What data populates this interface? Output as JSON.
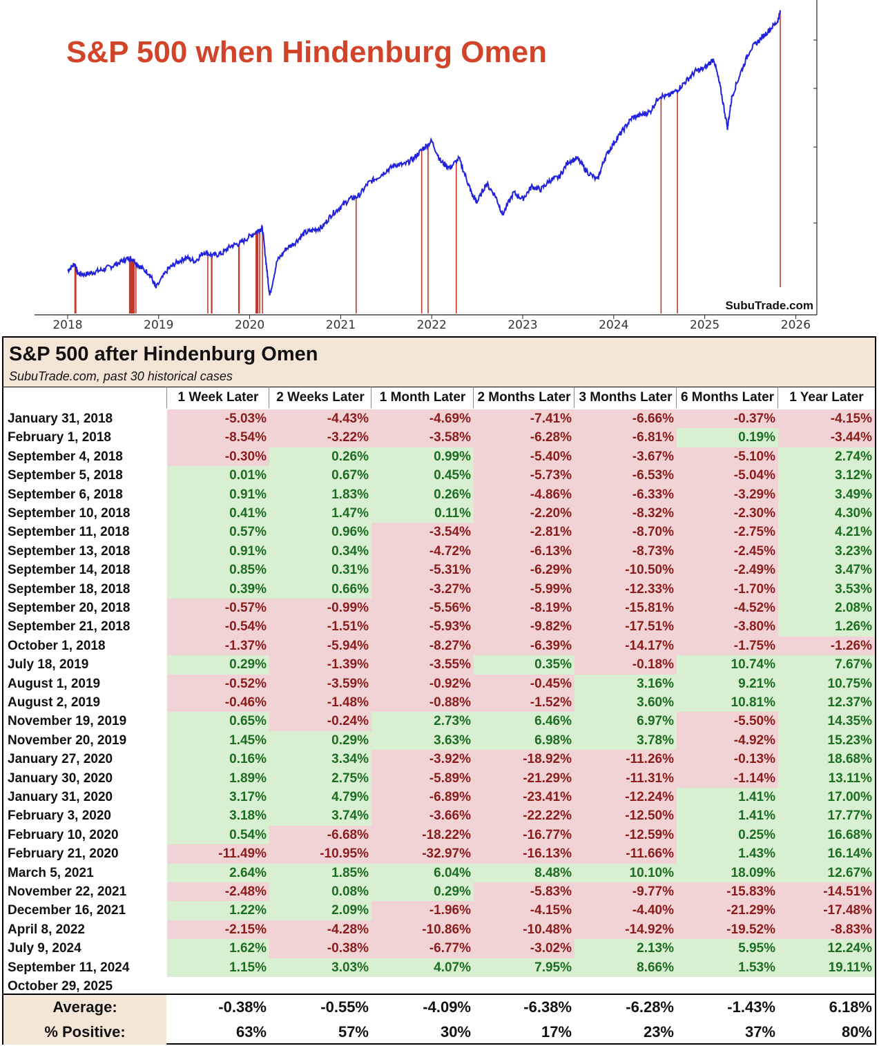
{
  "chart_data": [
    {
      "type": "line",
      "title": "S&P 500 when Hindenburg Omen",
      "title_color": "#d2442a",
      "line_color": "#2222dd",
      "marker_color": "#c0392b",
      "watermark": "SubuTrade.com",
      "xlabel": "",
      "ylabel": "",
      "x_ticks": [
        "2018",
        "2019",
        "2020",
        "2021",
        "2022",
        "2023",
        "2024",
        "2025",
        "2026"
      ],
      "xlim": [
        2018.0,
        2026.0
      ],
      "ylim": [
        2100,
        7000
      ],
      "grid": false,
      "series": [
        {
          "x": [
            2018.0,
            2018.08,
            2018.11,
            2018.2,
            2018.3,
            2018.4,
            2018.5,
            2018.6,
            2018.67,
            2018.72,
            2018.8,
            2018.9,
            2018.97,
            2019.1,
            2019.2,
            2019.3,
            2019.4,
            2019.5,
            2019.6,
            2019.7,
            2019.8,
            2019.9,
            2020.0,
            2020.1,
            2020.14,
            2020.19,
            2020.22,
            2020.3,
            2020.4,
            2020.5,
            2020.6,
            2020.7,
            2020.8,
            2020.9,
            2021.0,
            2021.1,
            2021.2,
            2021.3,
            2021.4,
            2021.5,
            2021.6,
            2021.7,
            2021.8,
            2021.9,
            2022.0,
            2022.1,
            2022.2,
            2022.3,
            2022.4,
            2022.45,
            2022.5,
            2022.6,
            2022.7,
            2022.78,
            2022.9,
            2023.0,
            2023.1,
            2023.2,
            2023.3,
            2023.4,
            2023.5,
            2023.6,
            2023.7,
            2023.82,
            2023.9,
            2024.0,
            2024.1,
            2024.2,
            2024.3,
            2024.4,
            2024.5,
            2024.6,
            2024.7,
            2024.8,
            2024.9,
            2025.0,
            2025.1,
            2025.17,
            2025.25,
            2025.3,
            2025.4,
            2025.5,
            2025.6,
            2025.7,
            2025.8,
            2025.83
          ],
          "y": [
            2700,
            2810,
            2650,
            2640,
            2680,
            2720,
            2780,
            2850,
            2900,
            2880,
            2750,
            2650,
            2420,
            2720,
            2830,
            2910,
            2850,
            3000,
            2940,
            2980,
            3100,
            3140,
            3250,
            3350,
            3380,
            2700,
            2300,
            2850,
            3050,
            3150,
            3300,
            3350,
            3400,
            3600,
            3720,
            3850,
            3900,
            4100,
            4190,
            4300,
            4400,
            4400,
            4500,
            4650,
            4780,
            4450,
            4350,
            4500,
            4100,
            3900,
            3800,
            4100,
            3900,
            3600,
            3950,
            3850,
            4050,
            4000,
            4150,
            4200,
            4450,
            4500,
            4300,
            4150,
            4500,
            4750,
            4950,
            5150,
            5200,
            5250,
            5500,
            5500,
            5600,
            5750,
            5900,
            5950,
            6100,
            5650,
            5000,
            5500,
            5900,
            6250,
            6400,
            6550,
            6700,
            6850
          ]
        }
      ],
      "signal_years": [
        2018.08,
        2018.09,
        2018.68,
        2018.685,
        2018.69,
        2018.7,
        2018.71,
        2018.715,
        2018.72,
        2018.73,
        2018.75,
        2019.54,
        2019.58,
        2019.585,
        2019.88,
        2019.885,
        2020.07,
        2020.08,
        2020.083,
        2020.09,
        2020.11,
        2020.14,
        2021.17,
        2021.89,
        2021.96,
        2022.27,
        2024.52,
        2024.7,
        2025.83
      ]
    },
    {
      "type": "table",
      "title": "S&P 500 after Hindenburg Omen",
      "subtitle": "SubuTrade.com, past 30 historical cases",
      "columns": [
        "1 Week Later",
        "2 Weeks Later",
        "1 Month Later",
        "2 Months Later",
        "3 Months Later",
        "6 Months Later",
        "1 Year Later"
      ],
      "rows": [
        {
          "date": "January 31, 2018",
          "values": [
            "-5.03%",
            "-4.43%",
            "-4.69%",
            "-7.41%",
            "-6.66%",
            "-0.37%",
            "-4.15%"
          ]
        },
        {
          "date": "February 1, 2018",
          "values": [
            "-8.54%",
            "-3.22%",
            "-3.58%",
            "-6.28%",
            "-6.81%",
            "0.19%",
            "-3.44%"
          ]
        },
        {
          "date": "September 4, 2018",
          "values": [
            "-0.30%",
            "0.26%",
            "0.99%",
            "-5.40%",
            "-3.67%",
            "-5.10%",
            "2.74%"
          ]
        },
        {
          "date": "September 5, 2018",
          "values": [
            "0.01%",
            "0.67%",
            "0.45%",
            "-5.73%",
            "-6.53%",
            "-5.04%",
            "3.12%"
          ]
        },
        {
          "date": "September 6, 2018",
          "values": [
            "0.91%",
            "1.83%",
            "0.26%",
            "-4.86%",
            "-6.33%",
            "-3.29%",
            "3.49%"
          ]
        },
        {
          "date": "September 10, 2018",
          "values": [
            "0.41%",
            "1.47%",
            "0.11%",
            "-2.20%",
            "-8.32%",
            "-2.30%",
            "4.30%"
          ]
        },
        {
          "date": "September 11, 2018",
          "values": [
            "0.57%",
            "0.96%",
            "-3.54%",
            "-2.81%",
            "-8.70%",
            "-2.75%",
            "4.21%"
          ]
        },
        {
          "date": "September 13, 2018",
          "values": [
            "0.91%",
            "0.34%",
            "-4.72%",
            "-6.13%",
            "-8.73%",
            "-2.45%",
            "3.23%"
          ]
        },
        {
          "date": "September 14, 2018",
          "values": [
            "0.85%",
            "0.31%",
            "-5.31%",
            "-6.29%",
            "-10.50%",
            "-2.49%",
            "3.47%"
          ]
        },
        {
          "date": "September 18, 2018",
          "values": [
            "0.39%",
            "0.66%",
            "-3.27%",
            "-5.99%",
            "-12.33%",
            "-1.70%",
            "3.53%"
          ]
        },
        {
          "date": "September 20, 2018",
          "values": [
            "-0.57%",
            "-0.99%",
            "-5.56%",
            "-8.19%",
            "-15.81%",
            "-4.52%",
            "2.08%"
          ]
        },
        {
          "date": "September 21, 2018",
          "values": [
            "-0.54%",
            "-1.51%",
            "-5.93%",
            "-9.82%",
            "-17.51%",
            "-3.80%",
            "1.26%"
          ]
        },
        {
          "date": "October 1, 2018",
          "values": [
            "-1.37%",
            "-5.94%",
            "-8.27%",
            "-6.39%",
            "-14.17%",
            "-1.75%",
            "-1.26%"
          ]
        },
        {
          "date": "July 18, 2019",
          "values": [
            "0.29%",
            "-1.39%",
            "-3.55%",
            "0.35%",
            "-0.18%",
            "10.74%",
            "7.67%"
          ]
        },
        {
          "date": "August 1, 2019",
          "values": [
            "-0.52%",
            "-3.59%",
            "-0.92%",
            "-0.45%",
            "3.16%",
            "9.21%",
            "10.75%"
          ]
        },
        {
          "date": "August 2, 2019",
          "values": [
            "-0.46%",
            "-1.48%",
            "-0.88%",
            "-1.52%",
            "3.60%",
            "10.81%",
            "12.37%"
          ]
        },
        {
          "date": "November 19, 2019",
          "values": [
            "0.65%",
            "-0.24%",
            "2.73%",
            "6.46%",
            "6.97%",
            "-5.50%",
            "14.35%"
          ]
        },
        {
          "date": "November 20, 2019",
          "values": [
            "1.45%",
            "0.29%",
            "3.63%",
            "6.98%",
            "3.78%",
            "-4.92%",
            "15.23%"
          ]
        },
        {
          "date": "January 27, 2020",
          "values": [
            "0.16%",
            "3.34%",
            "-3.92%",
            "-18.92%",
            "-11.26%",
            "-0.13%",
            "18.68%"
          ]
        },
        {
          "date": "January 30, 2020",
          "values": [
            "1.89%",
            "2.75%",
            "-5.89%",
            "-21.29%",
            "-11.31%",
            "-1.14%",
            "13.11%"
          ]
        },
        {
          "date": "January 31, 2020",
          "values": [
            "3.17%",
            "4.79%",
            "-6.89%",
            "-23.41%",
            "-12.24%",
            "1.41%",
            "17.00%"
          ]
        },
        {
          "date": "February 3, 2020",
          "values": [
            "3.18%",
            "3.74%",
            "-3.66%",
            "-22.22%",
            "-12.50%",
            "1.41%",
            "17.77%"
          ]
        },
        {
          "date": "February 10, 2020",
          "values": [
            "0.54%",
            "-6.68%",
            "-18.22%",
            "-16.77%",
            "-12.59%",
            "0.25%",
            "16.68%"
          ]
        },
        {
          "date": "February 21, 2020",
          "values": [
            "-11.49%",
            "-10.95%",
            "-32.97%",
            "-16.13%",
            "-11.66%",
            "1.43%",
            "16.14%"
          ]
        },
        {
          "date": "March 5, 2021",
          "values": [
            "2.64%",
            "1.85%",
            "6.04%",
            "8.48%",
            "10.10%",
            "18.09%",
            "12.67%"
          ]
        },
        {
          "date": "November 22, 2021",
          "values": [
            "-2.48%",
            "0.08%",
            "0.29%",
            "-5.83%",
            "-9.77%",
            "-15.83%",
            "-14.51%"
          ]
        },
        {
          "date": "December 16, 2021",
          "values": [
            "1.22%",
            "2.09%",
            "-1.96%",
            "-4.15%",
            "-4.40%",
            "-21.29%",
            "-17.48%"
          ]
        },
        {
          "date": "April 8, 2022",
          "values": [
            "-2.15%",
            "-4.28%",
            "-10.86%",
            "-10.48%",
            "-14.92%",
            "-19.52%",
            "-8.83%"
          ]
        },
        {
          "date": "July 9, 2024",
          "values": [
            "1.62%",
            "-0.38%",
            "-6.77%",
            "-3.02%",
            "2.13%",
            "5.95%",
            "12.24%"
          ]
        },
        {
          "date": "September 11, 2024",
          "values": [
            "1.15%",
            "3.03%",
            "4.07%",
            "7.95%",
            "8.66%",
            "1.53%",
            "19.11%"
          ]
        },
        {
          "date": "October 29, 2025",
          "values": [
            "",
            "",
            "",
            "",
            "",
            "",
            ""
          ]
        }
      ],
      "summary": [
        {
          "label": "Average:",
          "values": [
            "-0.38%",
            "-0.55%",
            "-4.09%",
            "-6.38%",
            "-6.28%",
            "-1.43%",
            "6.18%"
          ]
        },
        {
          "label": "% Positive:",
          "values": [
            "63%",
            "57%",
            "30%",
            "17%",
            "23%",
            "37%",
            "80%"
          ]
        }
      ],
      "positive_bg": "#d9efd2",
      "positive_text": "#1c6d21",
      "negative_bg": "#f2d3d5",
      "negative_text": "#8b1c1c"
    }
  ]
}
